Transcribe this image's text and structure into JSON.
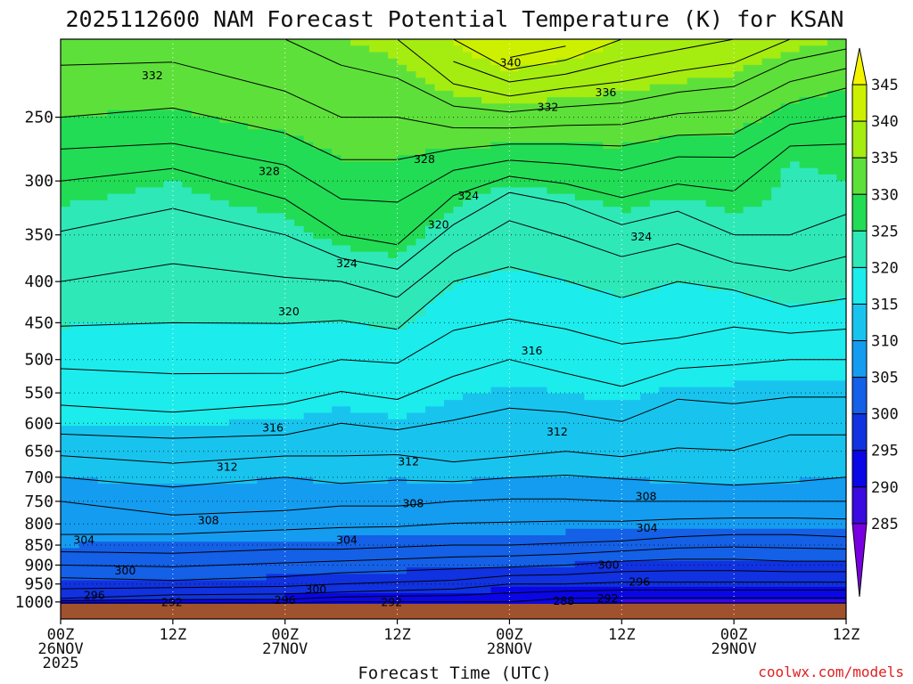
{
  "chart_data": {
    "type": "heatmap",
    "title": "2025112600 NAM Forecast Potential Temperature (K) for KSAN",
    "xlabel": "Forecast Time (UTC)",
    "ylabel": "",
    "credit": "coolwx.com/models",
    "y_scale": "log-pressure",
    "y_range_hpa": [
      200,
      1050
    ],
    "x_range_hours": [
      0,
      84
    ],
    "grid": true,
    "colorbar_ticks": [
      "345",
      "340",
      "335",
      "330",
      "325",
      "320",
      "315",
      "310",
      "305",
      "300",
      "295",
      "290",
      "285"
    ],
    "colorbar_colors": [
      "#f4f400",
      "#cdf000",
      "#a5ec10",
      "#5ee03a",
      "#22dc55",
      "#2fe8b8",
      "#1cecec",
      "#18c4ee",
      "#149cf0",
      "#1460e6",
      "#1032e0",
      "#0a06e6",
      "#3a0ae0",
      "#7800e0"
    ],
    "y_ticks": [
      {
        "p": 250,
        "label": "250"
      },
      {
        "p": 300,
        "label": "300"
      },
      {
        "p": 350,
        "label": "350"
      },
      {
        "p": 400,
        "label": "400"
      },
      {
        "p": 450,
        "label": "450"
      },
      {
        "p": 500,
        "label": "500"
      },
      {
        "p": 550,
        "label": "550"
      },
      {
        "p": 600,
        "label": "600"
      },
      {
        "p": 650,
        "label": "650"
      },
      {
        "p": 700,
        "label": "700"
      },
      {
        "p": 750,
        "label": "750"
      },
      {
        "p": 800,
        "label": "800"
      },
      {
        "p": 850,
        "label": "850"
      },
      {
        "p": 900,
        "label": "900"
      },
      {
        "p": 950,
        "label": "950"
      },
      {
        "p": 1000,
        "label": "1000"
      }
    ],
    "x_ticks": [
      {
        "h": 0,
        "lines": [
          "00Z",
          "26NOV",
          "2025"
        ]
      },
      {
        "h": 12,
        "lines": [
          "12Z"
        ]
      },
      {
        "h": 24,
        "lines": [
          "00Z",
          "27NOV"
        ]
      },
      {
        "h": 36,
        "lines": [
          "12Z"
        ]
      },
      {
        "h": 48,
        "lines": [
          "00Z",
          "28NOV"
        ]
      },
      {
        "h": 60,
        "lines": [
          "12Z"
        ]
      },
      {
        "h": 72,
        "lines": [
          "00Z",
          "29NOV"
        ]
      },
      {
        "h": 84,
        "lines": [
          "12Z"
        ]
      }
    ],
    "contour_profiles": [
      {
        "h": 0,
        "theta": [
          [
            1008,
            290
          ],
          [
            1000,
            293
          ],
          [
            990,
            296
          ],
          [
            950,
            299
          ],
          [
            900,
            302
          ],
          [
            850,
            305
          ],
          [
            800,
            307
          ],
          [
            750,
            308
          ],
          [
            700,
            310
          ],
          [
            600,
            315
          ],
          [
            500,
            318.5
          ],
          [
            400,
            322
          ],
          [
            300,
            326
          ],
          [
            250,
            330
          ],
          [
            200,
            333
          ]
        ]
      },
      {
        "h": 12,
        "theta": [
          [
            1008,
            290
          ],
          [
            1000,
            293
          ],
          [
            980,
            296
          ],
          [
            940,
            300
          ],
          [
            870,
            304
          ],
          [
            780,
            308
          ],
          [
            720,
            310
          ],
          [
            650,
            313
          ],
          [
            560,
            317
          ],
          [
            450,
            320
          ],
          [
            380,
            322
          ],
          [
            300,
            325
          ],
          [
            260,
            329
          ],
          [
            200,
            333
          ]
        ]
      },
      {
        "h": 24,
        "theta": [
          [
            1008,
            290
          ],
          [
            1000,
            293
          ],
          [
            970,
            297
          ],
          [
            930,
            300
          ],
          [
            860,
            304
          ],
          [
            770,
            308
          ],
          [
            700,
            310
          ],
          [
            620,
            314
          ],
          [
            520,
            318
          ],
          [
            420,
            321
          ],
          [
            350,
            324
          ],
          [
            300,
            327
          ],
          [
            250,
            331
          ],
          [
            200,
            334
          ]
        ]
      },
      {
        "h": 30,
        "theta": [
          [
            1008,
            290
          ],
          [
            1000,
            292
          ],
          [
            965,
            297
          ],
          [
            920,
            300
          ],
          [
            860,
            304
          ],
          [
            760,
            308
          ],
          [
            690,
            311
          ],
          [
            600,
            314
          ],
          [
            500,
            318
          ],
          [
            400,
            322
          ],
          [
            350,
            326
          ],
          [
            300,
            329
          ],
          [
            250,
            332
          ],
          [
            200,
            335
          ]
        ]
      },
      {
        "h": 36,
        "theta": [
          [
            1008,
            290
          ],
          [
            1000,
            292
          ],
          [
            960,
            297
          ],
          [
            915,
            300
          ],
          [
            855,
            304
          ],
          [
            760,
            308
          ],
          [
            680,
            311
          ],
          [
            590,
            315
          ],
          [
            480,
            319
          ],
          [
            400,
            323
          ],
          [
            360,
            326
          ],
          [
            300,
            329
          ],
          [
            250,
            332
          ],
          [
            200,
            336
          ]
        ]
      },
      {
        "h": 42,
        "theta": [
          [
            1008,
            290
          ],
          [
            1000,
            292
          ],
          [
            955,
            297
          ],
          [
            910,
            300
          ],
          [
            850,
            304
          ],
          [
            750,
            308
          ],
          [
            670,
            312
          ],
          [
            560,
            315
          ],
          [
            460,
            318
          ],
          [
            400,
            320
          ],
          [
            340,
            324
          ],
          [
            300,
            327
          ],
          [
            250,
            333
          ],
          [
            200,
            340
          ]
        ]
      },
      {
        "h": 48,
        "theta": [
          [
            1008,
            290
          ],
          [
            1000,
            292
          ],
          [
            950,
            296
          ],
          [
            905,
            300
          ],
          [
            850,
            304
          ],
          [
            745,
            308
          ],
          [
            660,
            312
          ],
          [
            500,
            316
          ],
          [
            420,
            319
          ],
          [
            350,
            321
          ],
          [
            310,
            324
          ],
          [
            270,
            330
          ],
          [
            230,
            337
          ],
          [
            200,
            345
          ]
        ]
      },
      {
        "h": 54,
        "theta": [
          [
            1008,
            289
          ],
          [
            1000,
            291
          ],
          [
            950,
            296
          ],
          [
            900,
            300
          ],
          [
            845,
            304
          ],
          [
            745,
            308
          ],
          [
            650,
            312
          ],
          [
            520,
            316
          ],
          [
            430,
            319
          ],
          [
            370,
            321
          ],
          [
            320,
            324
          ],
          [
            270,
            330
          ],
          [
            230,
            336
          ],
          [
            200,
            343
          ]
        ]
      },
      {
        "h": 60,
        "theta": [
          [
            1008,
            288
          ],
          [
            1000,
            291
          ],
          [
            945,
            296
          ],
          [
            890,
            300
          ],
          [
            840,
            304
          ],
          [
            750,
            308
          ],
          [
            660,
            312
          ],
          [
            540,
            316
          ],
          [
            450,
            319
          ],
          [
            390,
            321
          ],
          [
            340,
            324
          ],
          [
            280,
            329
          ],
          [
            240,
            334
          ],
          [
            200,
            340
          ]
        ]
      },
      {
        "h": 66,
        "theta": [
          [
            1008,
            288
          ],
          [
            1000,
            291
          ],
          [
            945,
            296
          ],
          [
            885,
            300
          ],
          [
            830,
            304
          ],
          [
            750,
            308
          ],
          [
            690,
            311
          ],
          [
            560,
            314
          ],
          [
            470,
            318
          ],
          [
            400,
            320
          ],
          [
            340,
            323
          ],
          [
            280,
            328
          ],
          [
            240,
            333
          ],
          [
            200,
            339
          ]
        ]
      },
      {
        "h": 72,
        "theta": [
          [
            1008,
            288
          ],
          [
            1000,
            291
          ],
          [
            945,
            296
          ],
          [
            885,
            300
          ],
          [
            825,
            304
          ],
          [
            750,
            308
          ],
          [
            700,
            311
          ],
          [
            600,
            313
          ],
          [
            480,
            317
          ],
          [
            410,
            320
          ],
          [
            350,
            324
          ],
          [
            290,
            327
          ],
          [
            245,
            332
          ],
          [
            200,
            338
          ]
        ]
      },
      {
        "h": 78,
        "theta": [
          [
            1008,
            288
          ],
          [
            1000,
            291
          ],
          [
            945,
            296
          ],
          [
            890,
            300
          ],
          [
            825,
            304
          ],
          [
            750,
            308
          ],
          [
            710,
            310
          ],
          [
            620,
            312
          ],
          [
            500,
            316
          ],
          [
            430,
            320
          ],
          [
            350,
            324
          ],
          [
            280,
            325
          ],
          [
            240,
            330
          ],
          [
            200,
            336
          ]
        ]
      },
      {
        "h": 84,
        "theta": [
          [
            1008,
            288
          ],
          [
            1000,
            291
          ],
          [
            945,
            296
          ],
          [
            890,
            300
          ],
          [
            830,
            304
          ],
          [
            750,
            308
          ],
          [
            700,
            310
          ],
          [
            620,
            312
          ],
          [
            500,
            316
          ],
          [
            420,
            320
          ],
          [
            330,
            324
          ],
          [
            270,
            326
          ],
          [
            230,
            330
          ],
          [
            200,
            335
          ]
        ]
      }
    ],
    "contour_labels": [
      {
        "text": "332",
        "h": 9.8,
        "p": 222
      },
      {
        "text": "328",
        "h": 22.3,
        "p": 292
      },
      {
        "text": "324",
        "h": 30.6,
        "p": 380
      },
      {
        "text": "320",
        "h": 24.4,
        "p": 436
      },
      {
        "text": "316",
        "h": 22.7,
        "p": 608
      },
      {
        "text": "312",
        "h": 17.8,
        "p": 680
      },
      {
        "text": "308",
        "h": 15.8,
        "p": 792
      },
      {
        "text": "304",
        "h": 2.5,
        "p": 838
      },
      {
        "text": "300",
        "h": 6.9,
        "p": 915
      },
      {
        "text": "296",
        "h": 3.6,
        "p": 982
      },
      {
        "text": "292",
        "h": 11.9,
        "p": 1002
      },
      {
        "text": "300",
        "h": 27.3,
        "p": 965
      },
      {
        "text": "296",
        "h": 24.0,
        "p": 995
      },
      {
        "text": "292",
        "h": 35.4,
        "p": 1002
      },
      {
        "text": "304",
        "h": 30.6,
        "p": 838
      },
      {
        "text": "308",
        "h": 37.7,
        "p": 755
      },
      {
        "text": "312",
        "h": 37.2,
        "p": 670
      },
      {
        "text": "328",
        "h": 38.9,
        "p": 282
      },
      {
        "text": "324",
        "h": 43.6,
        "p": 313
      },
      {
        "text": "320",
        "h": 40.4,
        "p": 340
      },
      {
        "text": "340",
        "h": 48.1,
        "p": 214
      },
      {
        "text": "332",
        "h": 52.1,
        "p": 243
      },
      {
        "text": "316",
        "h": 50.4,
        "p": 488
      },
      {
        "text": "312",
        "h": 53.1,
        "p": 615
      },
      {
        "text": "308",
        "h": 62.6,
        "p": 740
      },
      {
        "text": "304",
        "h": 62.7,
        "p": 810
      },
      {
        "text": "300",
        "h": 58.6,
        "p": 900
      },
      {
        "text": "296",
        "h": 61.9,
        "p": 945
      },
      {
        "text": "292",
        "h": 58.5,
        "p": 990
      },
      {
        "text": "288",
        "h": 53.8,
        "p": 998
      },
      {
        "text": "336",
        "h": 58.3,
        "p": 233
      },
      {
        "text": "324",
        "h": 62.1,
        "p": 352
      }
    ]
  }
}
